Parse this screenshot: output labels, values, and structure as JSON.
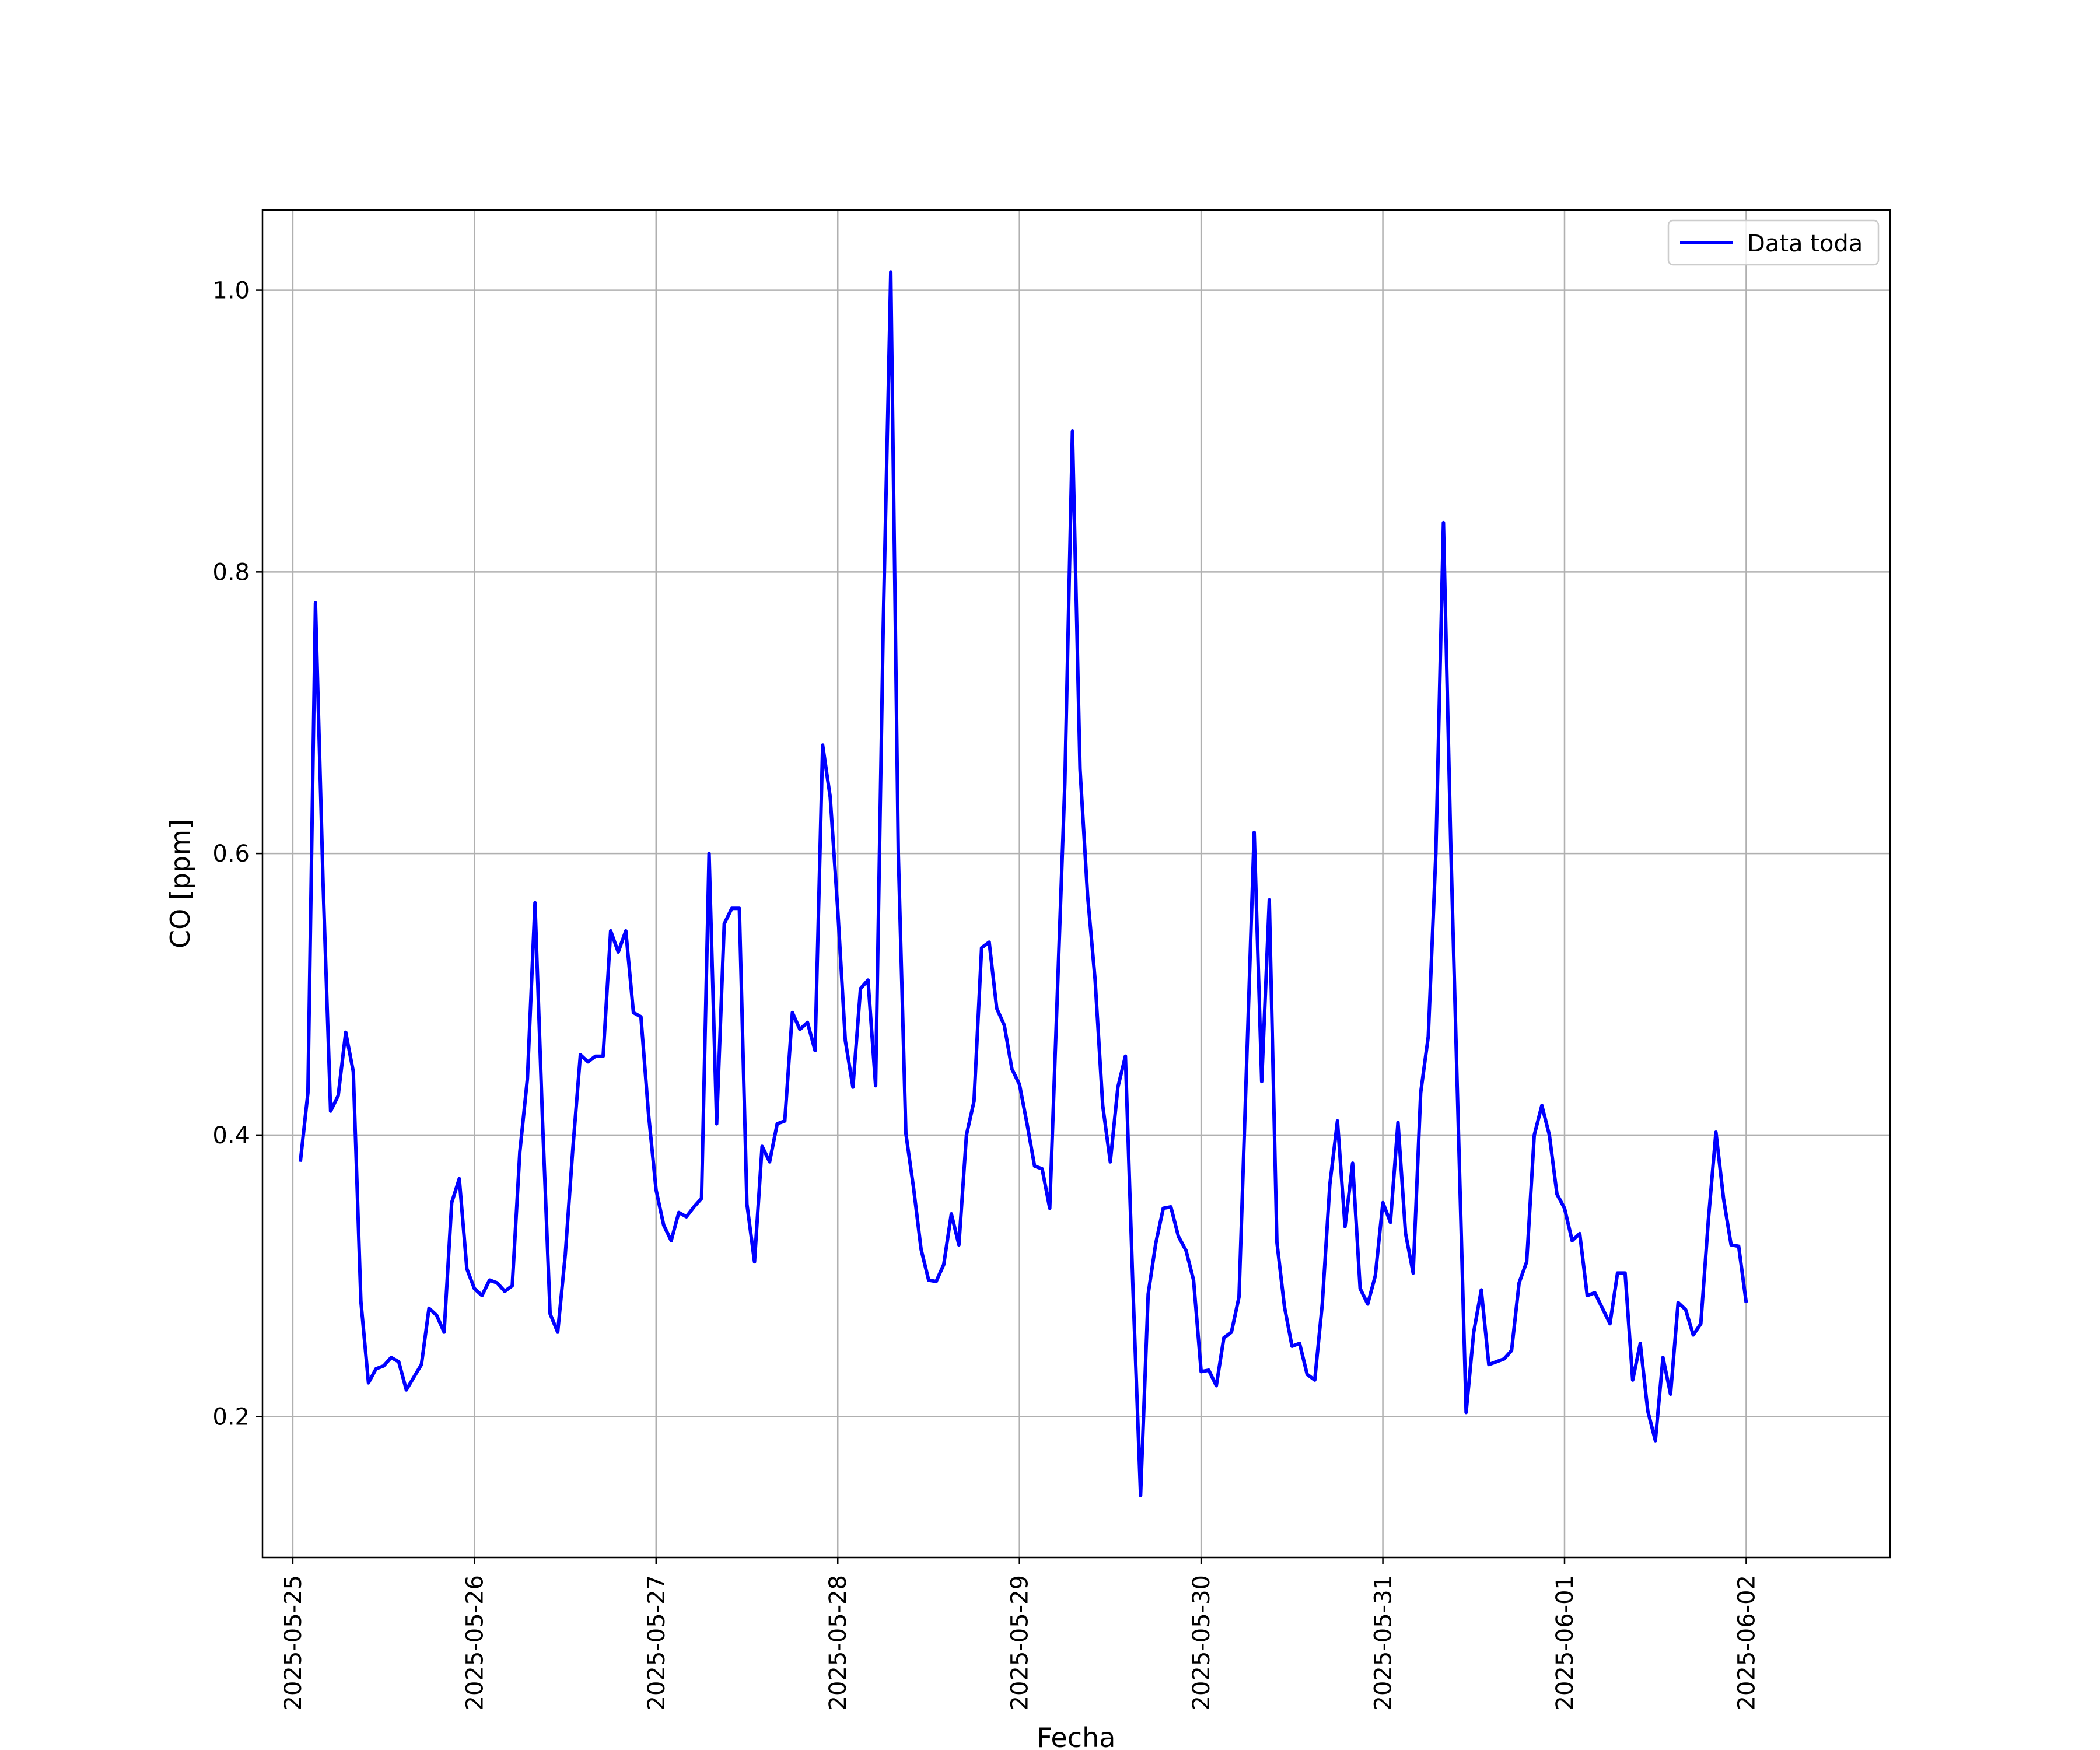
{
  "chart_data": {
    "type": "line",
    "title": "",
    "xlabel": "Fecha",
    "ylabel": "CO [ppm]",
    "xlim": [
      "2025-05-24T20:00",
      "2025-06-02T19:00"
    ],
    "ylim": [
      0.1,
      1.057
    ],
    "grid": true,
    "legend_position": "top-right",
    "x_tick_labels": [
      "2025-05-25",
      "2025-05-26",
      "2025-05-27",
      "2025-05-28",
      "2025-05-29",
      "2025-05-30",
      "2025-05-31",
      "2025-06-01",
      "2025-06-02"
    ],
    "y_tick_labels": [
      "0.2",
      "0.4",
      "0.6",
      "0.8",
      "1.0"
    ],
    "y_ticks": [
      0.2,
      0.4,
      0.6,
      0.8,
      1.0
    ],
    "series": [
      {
        "name": "Data toda",
        "color": "#0000ff",
        "x": [
          "2025-05-25T01:00",
          "2025-05-25T02:00",
          "2025-05-25T03:00",
          "2025-05-25T04:00",
          "2025-05-25T05:00",
          "2025-05-25T06:00",
          "2025-05-25T07:00",
          "2025-05-25T08:00",
          "2025-05-25T09:00",
          "2025-05-25T10:00",
          "2025-05-25T11:00",
          "2025-05-25T12:00",
          "2025-05-25T13:00",
          "2025-05-25T14:00",
          "2025-05-25T15:00",
          "2025-05-25T16:00",
          "2025-05-25T17:00",
          "2025-05-25T18:00",
          "2025-05-25T19:00",
          "2025-05-25T20:00",
          "2025-05-25T21:00",
          "2025-05-25T22:00",
          "2025-05-25T23:00",
          "2025-05-26T00:00",
          "2025-05-26T01:00",
          "2025-05-26T02:00",
          "2025-05-26T03:00",
          "2025-05-26T04:00",
          "2025-05-26T05:00",
          "2025-05-26T06:00",
          "2025-05-26T07:00",
          "2025-05-26T08:00",
          "2025-05-26T09:00",
          "2025-05-26T10:00",
          "2025-05-26T11:00",
          "2025-05-26T12:00",
          "2025-05-26T13:00",
          "2025-05-26T14:00",
          "2025-05-26T15:00",
          "2025-05-26T16:00",
          "2025-05-26T17:00",
          "2025-05-26T18:00",
          "2025-05-26T19:00",
          "2025-05-26T20:00",
          "2025-05-26T21:00",
          "2025-05-26T22:00",
          "2025-05-26T23:00",
          "2025-05-27T00:00",
          "2025-05-27T01:00",
          "2025-05-27T02:00",
          "2025-05-27T03:00",
          "2025-05-27T04:00",
          "2025-05-27T05:00",
          "2025-05-27T06:00",
          "2025-05-27T07:00",
          "2025-05-27T08:00",
          "2025-05-27T09:00",
          "2025-05-27T10:00",
          "2025-05-27T11:00",
          "2025-05-27T12:00",
          "2025-05-27T13:00",
          "2025-05-27T14:00",
          "2025-05-27T15:00",
          "2025-05-27T16:00",
          "2025-05-27T17:00",
          "2025-05-27T18:00",
          "2025-05-27T19:00",
          "2025-05-27T20:00",
          "2025-05-27T21:00",
          "2025-05-27T22:00",
          "2025-05-27T23:00",
          "2025-05-28T00:00",
          "2025-05-28T01:00",
          "2025-05-28T02:00",
          "2025-05-28T03:00",
          "2025-05-28T04:00",
          "2025-05-28T05:00",
          "2025-05-28T06:00",
          "2025-05-28T07:00",
          "2025-05-28T08:00",
          "2025-05-28T09:00",
          "2025-05-28T10:00",
          "2025-05-28T11:00",
          "2025-05-28T12:00",
          "2025-05-28T13:00",
          "2025-05-28T14:00",
          "2025-05-28T15:00",
          "2025-05-28T16:00",
          "2025-05-28T17:00",
          "2025-05-28T18:00",
          "2025-05-28T19:00",
          "2025-05-28T20:00",
          "2025-05-28T21:00",
          "2025-05-28T22:00",
          "2025-05-28T23:00",
          "2025-05-29T00:00",
          "2025-05-29T01:00",
          "2025-05-29T02:00",
          "2025-05-29T03:00",
          "2025-05-29T04:00",
          "2025-05-29T05:00",
          "2025-05-29T06:00",
          "2025-05-29T07:00",
          "2025-05-29T08:00",
          "2025-05-29T09:00",
          "2025-05-29T10:00",
          "2025-05-29T11:00",
          "2025-05-29T12:00",
          "2025-05-29T13:00",
          "2025-05-29T14:00",
          "2025-05-29T15:00",
          "2025-05-29T16:00",
          "2025-05-29T17:00",
          "2025-05-29T18:00",
          "2025-05-29T19:00",
          "2025-05-29T20:00",
          "2025-05-29T21:00",
          "2025-05-29T22:00",
          "2025-05-29T23:00",
          "2025-05-30T00:00",
          "2025-05-30T01:00",
          "2025-05-30T02:00",
          "2025-05-30T03:00",
          "2025-05-30T04:00",
          "2025-05-30T05:00",
          "2025-05-30T06:00",
          "2025-05-30T07:00",
          "2025-05-30T08:00",
          "2025-05-30T09:00",
          "2025-05-30T10:00",
          "2025-05-30T11:00",
          "2025-05-30T12:00",
          "2025-05-30T13:00",
          "2025-05-30T14:00",
          "2025-05-30T15:00",
          "2025-05-30T16:00",
          "2025-05-30T17:00",
          "2025-05-30T18:00",
          "2025-05-30T19:00",
          "2025-05-30T20:00",
          "2025-05-30T21:00",
          "2025-05-30T22:00",
          "2025-05-30T23:00",
          "2025-05-31T00:00",
          "2025-05-31T01:00",
          "2025-05-31T02:00",
          "2025-05-31T03:00",
          "2025-05-31T04:00",
          "2025-05-31T05:00",
          "2025-05-31T06:00",
          "2025-05-31T07:00",
          "2025-05-31T08:00",
          "2025-05-31T09:00",
          "2025-05-31T10:00",
          "2025-05-31T11:00",
          "2025-05-31T12:00",
          "2025-05-31T13:00",
          "2025-05-31T14:00",
          "2025-05-31T15:00",
          "2025-05-31T16:00",
          "2025-05-31T17:00",
          "2025-05-31T18:00",
          "2025-05-31T19:00",
          "2025-05-31T20:00",
          "2025-05-31T21:00",
          "2025-05-31T22:00",
          "2025-05-31T23:00",
          "2025-06-01T00:00",
          "2025-06-01T01:00",
          "2025-06-01T02:00",
          "2025-06-01T03:00",
          "2025-06-01T04:00",
          "2025-06-01T05:00",
          "2025-06-01T06:00",
          "2025-06-01T07:00",
          "2025-06-01T08:00",
          "2025-06-01T09:00",
          "2025-06-01T10:00",
          "2025-06-01T11:00",
          "2025-06-01T12:00",
          "2025-06-01T13:00",
          "2025-06-01T14:00",
          "2025-06-01T15:00",
          "2025-06-01T16:00",
          "2025-06-01T17:00",
          "2025-06-01T18:00",
          "2025-06-01T19:00",
          "2025-06-01T20:00",
          "2025-06-01T21:00",
          "2025-06-01T22:00",
          "2025-06-01T23:00",
          "2025-06-02T00:00"
        ],
        "values": [
          0.381,
          0.43,
          0.778,
          0.58,
          0.417,
          0.428,
          0.473,
          0.445,
          0.282,
          0.224,
          0.234,
          0.236,
          0.242,
          0.239,
          0.219,
          0.228,
          0.237,
          0.277,
          0.272,
          0.26,
          0.352,
          0.369,
          0.305,
          0.291,
          0.286,
          0.297,
          0.295,
          0.289,
          0.293,
          0.388,
          0.44,
          0.565,
          0.41,
          0.273,
          0.26,
          0.315,
          0.39,
          0.457,
          0.452,
          0.456,
          0.456,
          0.545,
          0.53,
          0.545,
          0.487,
          0.484,
          0.415,
          0.361,
          0.336,
          0.325,
          0.345,
          0.342,
          0.349,
          0.355,
          0.6,
          0.408,
          0.55,
          0.561,
          0.561,
          0.351,
          0.31,
          0.392,
          0.381,
          0.408,
          0.41,
          0.487,
          0.475,
          0.48,
          0.46,
          0.677,
          0.64,
          0.56,
          0.467,
          0.434,
          0.504,
          0.51,
          0.435,
          0.76,
          1.013,
          0.6,
          0.401,
          0.363,
          0.319,
          0.297,
          0.296,
          0.308,
          0.344,
          0.322,
          0.4,
          0.424,
          0.533,
          0.537,
          0.49,
          0.478,
          0.447,
          0.436,
          0.408,
          0.378,
          0.376,
          0.348,
          0.5,
          0.65,
          0.9,
          0.66,
          0.57,
          0.51,
          0.421,
          0.381,
          0.434,
          0.456,
          0.29,
          0.144,
          0.287,
          0.323,
          0.348,
          0.349,
          0.328,
          0.318,
          0.297,
          0.232,
          0.233,
          0.222,
          0.256,
          0.26,
          0.285,
          0.45,
          0.615,
          0.438,
          0.567,
          0.324,
          0.278,
          0.25,
          0.252,
          0.23,
          0.226,
          0.28,
          0.365,
          0.41,
          0.335,
          0.38,
          0.291,
          0.28,
          0.3,
          0.352,
          0.338,
          0.409,
          0.33,
          0.302,
          0.43,
          0.47,
          0.6,
          0.835,
          0.6,
          0.4,
          0.203,
          0.26,
          0.29,
          0.237,
          0.239,
          0.241,
          0.247,
          0.295,
          0.31,
          0.4,
          0.421,
          0.4,
          0.358,
          0.348,
          0.325,
          0.33,
          0.286,
          0.288,
          0.277,
          0.266,
          0.302,
          0.302,
          0.226,
          0.252,
          0.204,
          0.183,
          0.242,
          0.216,
          0.281,
          0.276,
          0.258,
          0.266,
          0.34,
          0.402,
          0.355,
          0.322,
          0.321,
          0.281
        ]
      }
    ]
  }
}
